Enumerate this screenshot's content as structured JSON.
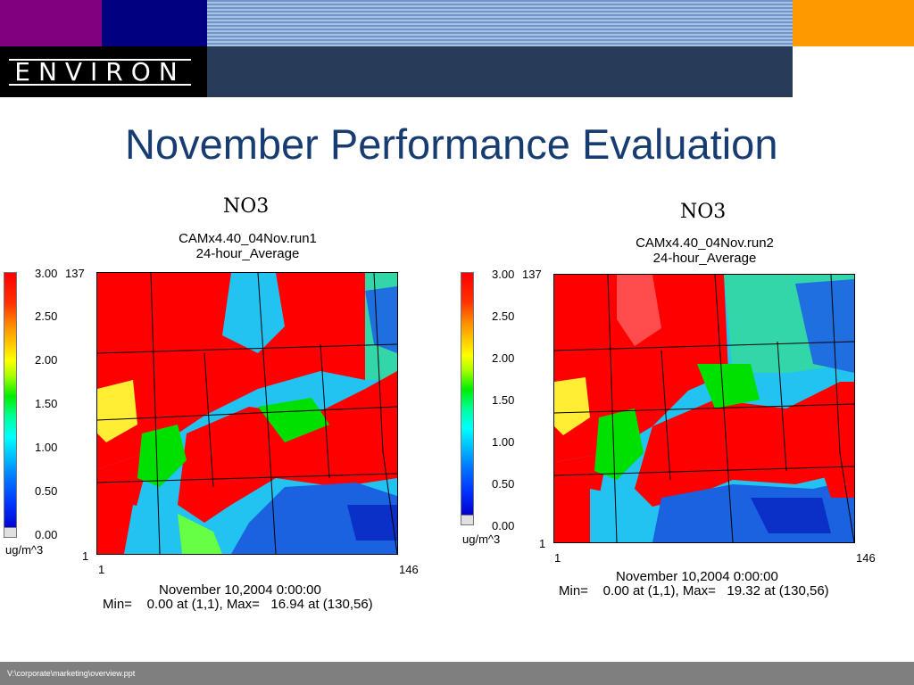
{
  "header": {
    "logo_text": "ENVIRON",
    "colors": {
      "purple": "#800080",
      "navy": "#000080",
      "orange": "#ff9900",
      "slate": "#283b58",
      "black": "#000000"
    }
  },
  "slide_title": "November Performance Evaluation",
  "panels": [
    {
      "title": "NO3",
      "run": "CAMx4.40_04Nov.run1",
      "average": "24-hour_Average",
      "colorbar": {
        "max_label": "3.00",
        "labels": [
          "2.50",
          "2.00",
          "1.50",
          "1.00",
          "0.50"
        ],
        "min_label": "0.00",
        "unit": "ug/m^3"
      },
      "y_top": "137",
      "y_bottom": "1",
      "x_left": "1",
      "x_right": "146",
      "date": "November 10,2004 0:00:00",
      "stats": "Min=    0.00 at (1,1), Max=   16.94 at (130,56)"
    },
    {
      "title": "NO3",
      "run": "CAMx4.40_04Nov.run2",
      "average": "24-hour_Average",
      "colorbar": {
        "max_label": "3.00",
        "labels": [
          "2.50",
          "2.00",
          "1.50",
          "1.00",
          "0.50"
        ],
        "min_label": "0.00",
        "unit": "ug/m^3"
      },
      "y_top": "137",
      "y_bottom": "1",
      "x_left": "1",
      "x_right": "146",
      "date": "November 10,2004 0:00:00",
      "stats": "Min=    0.00 at (1,1), Max=   19.32 at (130,56)"
    }
  ],
  "footer": {
    "path": "V:\\corporate\\marketing\\overview.ppt"
  }
}
